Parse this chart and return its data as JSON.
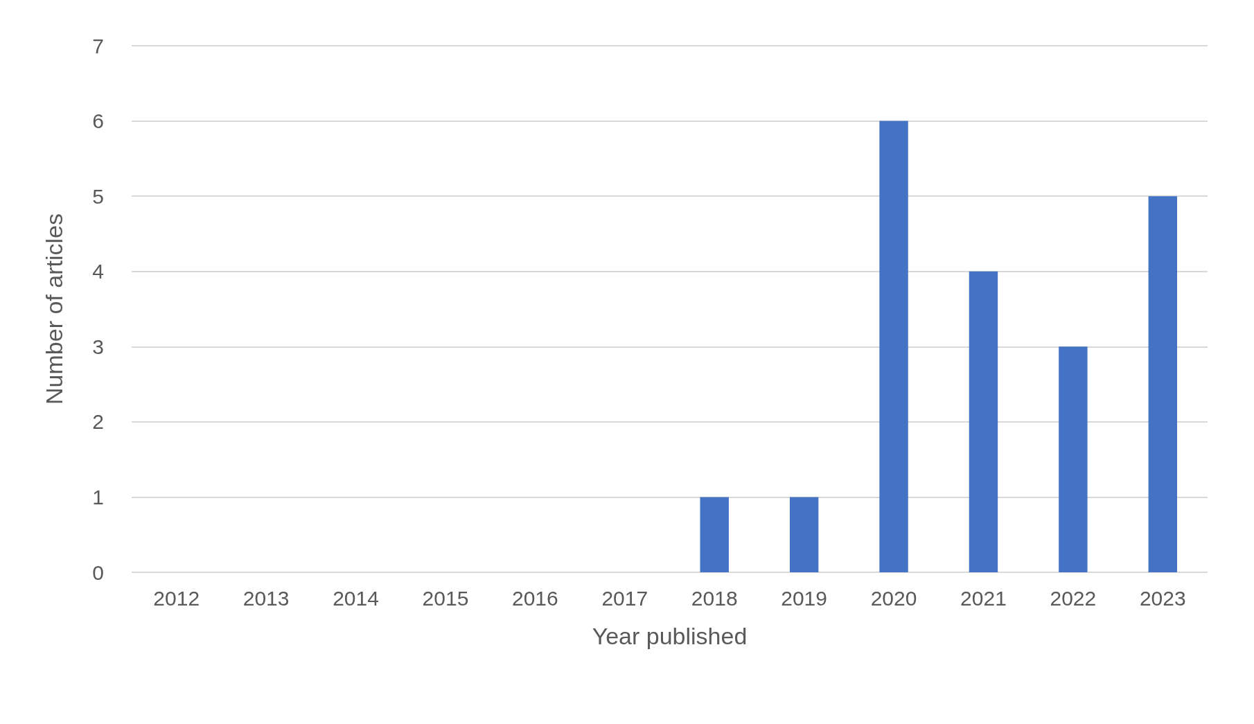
{
  "chart_data": {
    "type": "bar",
    "xlabel": "Year published",
    "ylabel": "Number of articles",
    "categories": [
      "2012",
      "2013",
      "2014",
      "2015",
      "2016",
      "2017",
      "2018",
      "2019",
      "2020",
      "2021",
      "2022",
      "2023"
    ],
    "values": [
      0,
      0,
      0,
      0,
      0,
      0,
      1,
      1,
      6,
      4,
      3,
      5
    ],
    "color": "#4472c4",
    "ylim": [
      0,
      7
    ],
    "yticks": [
      0,
      1,
      2,
      3,
      4,
      5,
      6,
      7
    ],
    "grid": "y"
  }
}
